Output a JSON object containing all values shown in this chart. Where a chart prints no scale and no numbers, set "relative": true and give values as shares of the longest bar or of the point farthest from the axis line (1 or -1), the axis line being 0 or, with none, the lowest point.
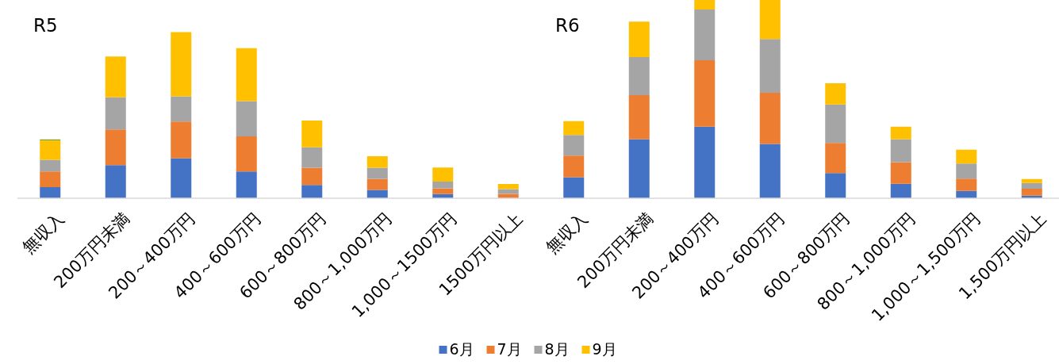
{
  "chart_data": {
    "type": "bar",
    "stacked": true,
    "relative": true,
    "legend": "bottom",
    "annotations": [
      "R5",
      "R6"
    ],
    "categories": [
      "無収入",
      "200万円未満",
      "200～400万円",
      "400～600万円",
      "600～800万円",
      "800～1,000万円",
      "1,000～1500万円",
      "1500万円以上",
      "無収入",
      "200万円未満",
      "200～400万円",
      "400～600万円",
      "600～800万円",
      "800～1,000万円",
      "1,000～1,500万円",
      "1,500万円以上"
    ],
    "series": [
      {
        "name": "6月",
        "color": "#4472c4",
        "values": [
          0.056,
          0.167,
          0.202,
          0.135,
          0.067,
          0.042,
          0.021,
          0,
          0.106,
          0.298,
          0.361,
          0.274,
          0.127,
          0.073,
          0.037,
          0.013
        ]
      },
      {
        "name": "7月",
        "color": "#ed7d31",
        "values": [
          0.079,
          0.18,
          0.185,
          0.177,
          0.087,
          0.056,
          0.029,
          0.022,
          0.109,
          0.222,
          0.335,
          0.258,
          0.152,
          0.109,
          0.062,
          0.035
        ]
      },
      {
        "name": "8月",
        "color": "#a5a5a5",
        "values": [
          0.059,
          0.162,
          0.127,
          0.178,
          0.103,
          0.056,
          0.034,
          0.024,
          0.104,
          0.192,
          0.256,
          0.271,
          0.194,
          0.116,
          0.076,
          0.029
        ]
      },
      {
        "name": "9月",
        "color": "#ffc000",
        "values": [
          0.098,
          0.206,
          0.324,
          0.267,
          0.135,
          0.058,
          0.071,
          0.026,
          0.07,
          0.179,
          0.048,
          0.197,
          0.107,
          0.063,
          0.07,
          0.02
        ]
      },
      {
        "color": "#70ad47",
        "values": [
          0.005,
          0,
          0,
          0,
          0,
          0,
          0,
          0,
          0,
          0,
          0,
          0,
          0,
          0,
          0,
          0
        ]
      }
    ]
  }
}
